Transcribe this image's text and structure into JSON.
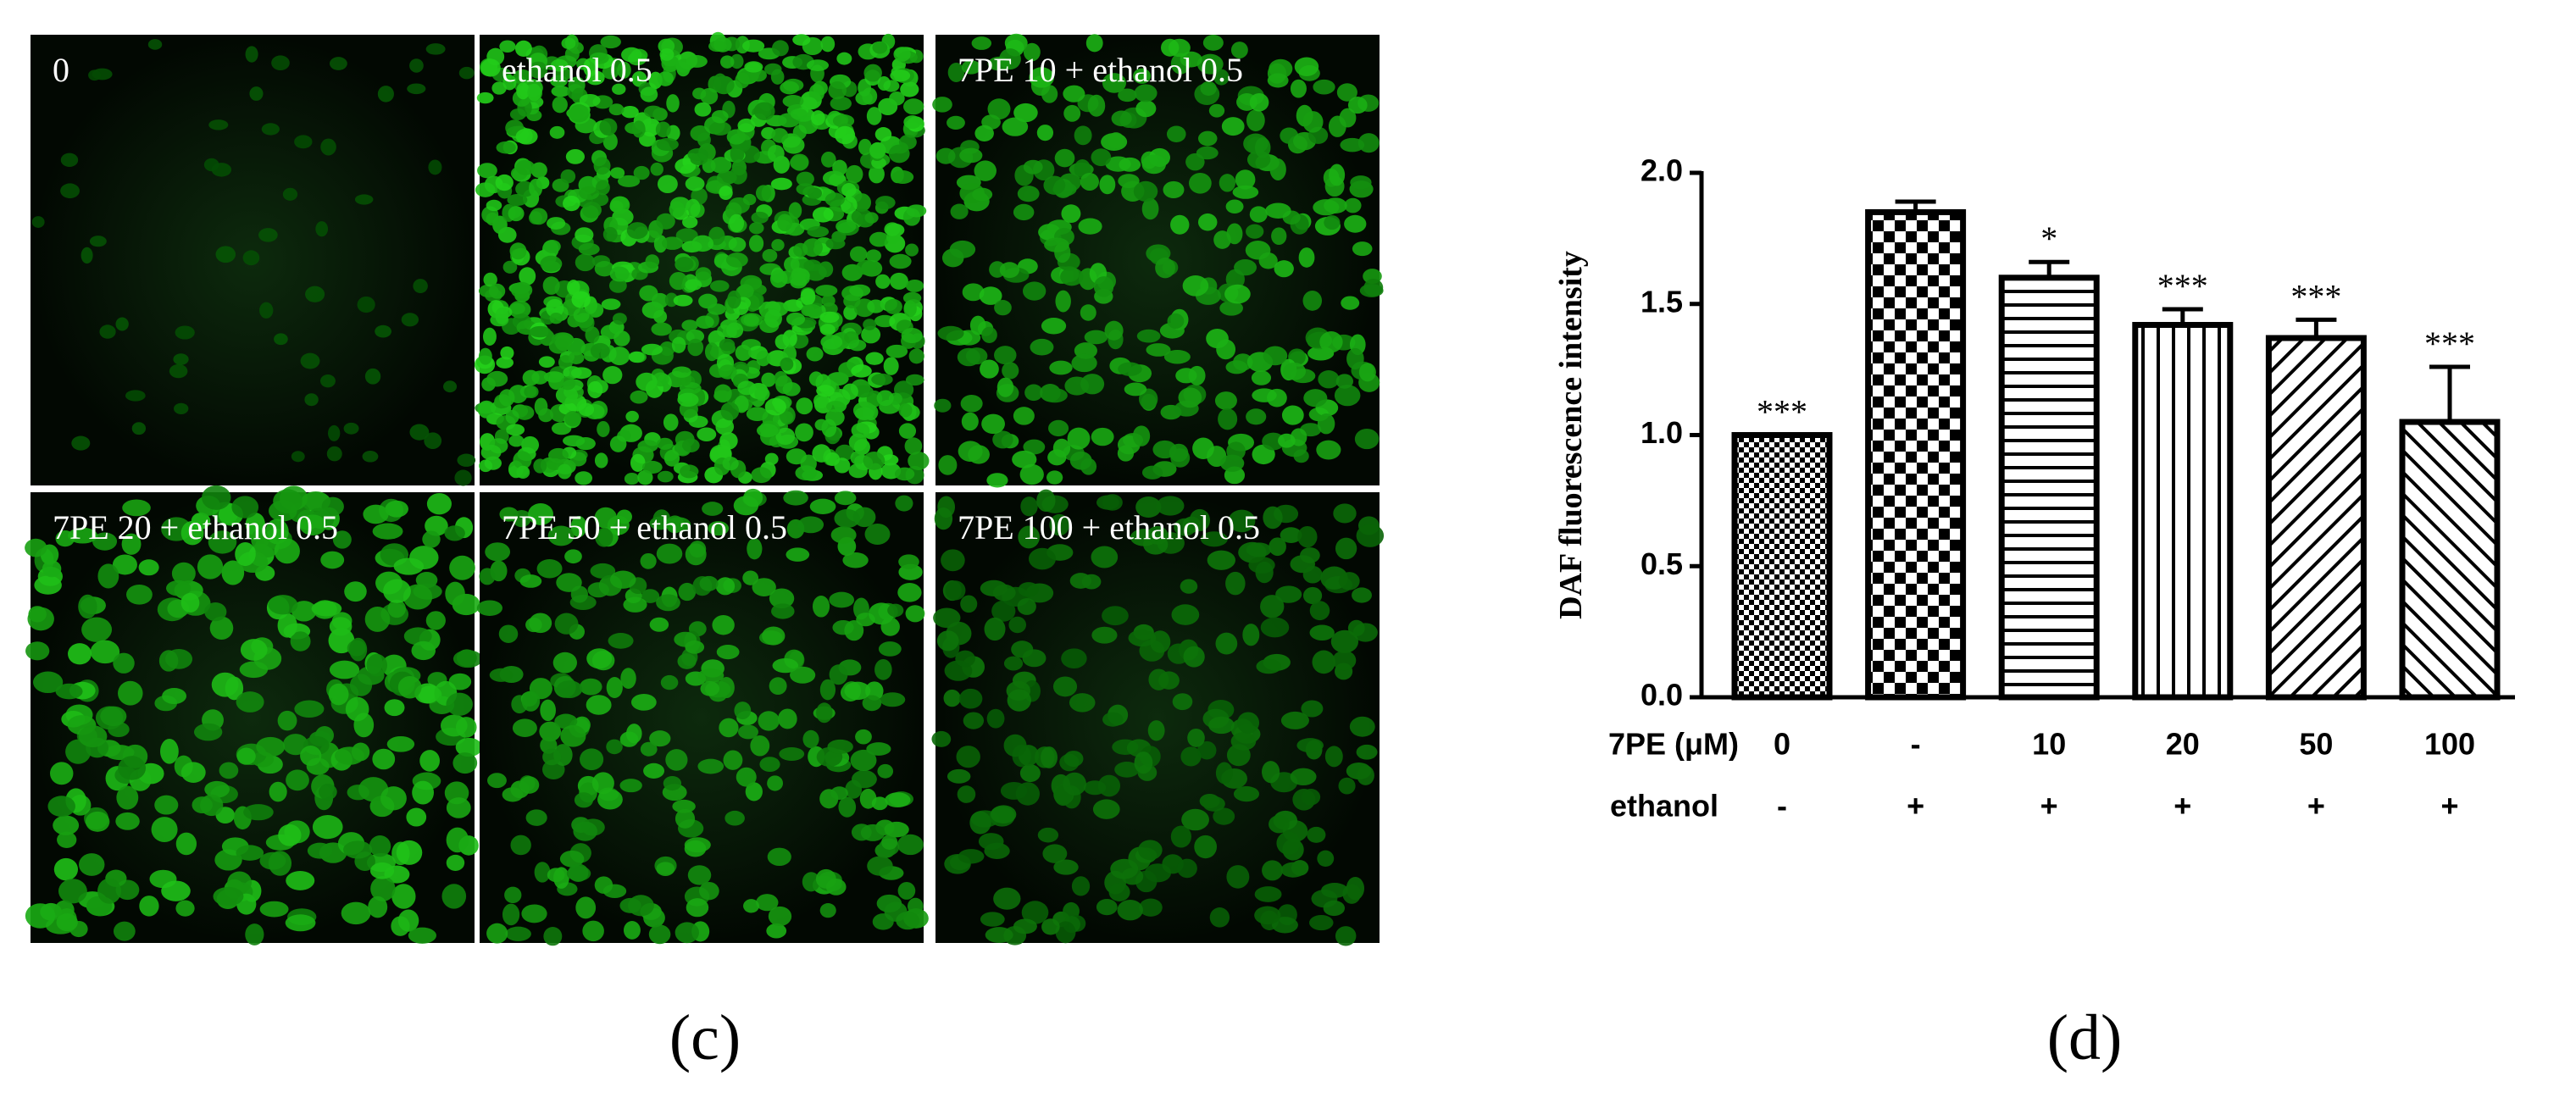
{
  "micrographs": {
    "labels": [
      "0",
      "ethanol 0.5",
      "7PE 10 + ethanol 0.5",
      "7PE 20 + ethanol 0.5",
      "7PE 50 + ethanol 0.5",
      "7PE 100 + ethanol 0.5"
    ],
    "panel_label": "(c)"
  },
  "chart_data": {
    "type": "bar",
    "panel_label": "(d)",
    "y_label": "DAF fluorescence intensity",
    "row_labels": [
      "7PE (μM)",
      "ethanol"
    ],
    "categories": [
      "0",
      "-",
      "10",
      "20",
      "50",
      "100"
    ],
    "ethanol": [
      "-",
      "+",
      "+",
      "+",
      "+",
      "+"
    ],
    "values": [
      1.0,
      1.85,
      1.6,
      1.42,
      1.37,
      1.05
    ],
    "errors": [
      0,
      0.04,
      0.06,
      0.06,
      0.07,
      0.21
    ],
    "annotations": [
      "***",
      null,
      "*",
      "***",
      "***",
      "***"
    ],
    "patterns": [
      "fine-check",
      "check",
      "horizontal",
      "vertical",
      "diagonal-up",
      "diagonal-down"
    ],
    "ylim": [
      0,
      2
    ],
    "yticks": [
      {
        "value": 0,
        "label": "0.0"
      },
      0.5,
      {
        "value": 1,
        "label": "1.0"
      },
      1.5,
      {
        "value": 2,
        "label": "2.0"
      }
    ]
  }
}
